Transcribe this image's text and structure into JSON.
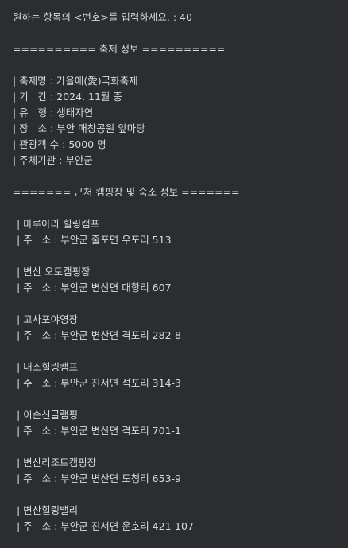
{
  "prompt_line": "원하는 항목의 <번호>를 입력하세요. : 40",
  "festival": {
    "header": "========== 축제 정보 ==========",
    "lines": [
      "| 축제명 : 가을애(愛)국화축제",
      "| 기   간 : 2024. 11월 중",
      "| 유   형 : 생태자연",
      "| 장   소 : 부안 매창공원 앞마당",
      "| 관광객 수 : 5000 명",
      "| 주체기관 : 부안군"
    ]
  },
  "camping": {
    "header": "======= 근처 캠핑장 및 숙소 정보 =======",
    "sites": [
      {
        "name": "| 마루아라 힐링캠프",
        "address": "| 주   소 : 부안군 줄포면 우포리 513"
      },
      {
        "name": "| 변산 오토캠핑장",
        "address": "| 주   소 : 부안군 변산면 대항리 607"
      },
      {
        "name": "| 고사포야영장",
        "address": "| 주   소 : 부안군 변산면 격포리 282-8"
      },
      {
        "name": "| 내소힐링캠프",
        "address": "| 주   소 : 부안군 진서면 석포리 314-3"
      },
      {
        "name": "| 이순신글램핑",
        "address": "| 주   소 : 부안군 변산면 격포리 701-1"
      },
      {
        "name": "| 변산리조트캠핑장",
        "address": "| 주   소 : 부안군 변산면 도청리 653-9"
      },
      {
        "name": "| 변산힐링밸리",
        "address": "| 주   소 : 부안군 진서면 운호리 421-107"
      }
    ]
  }
}
